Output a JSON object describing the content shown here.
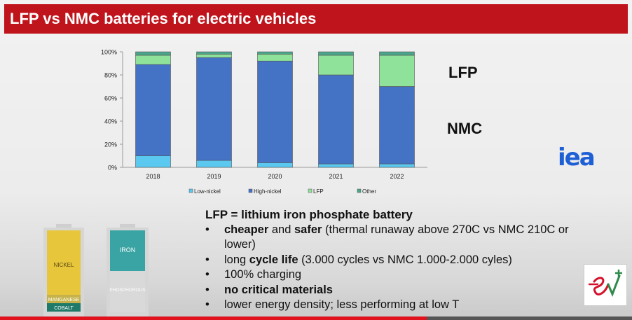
{
  "slide": {
    "title": "LFP vs NMC batteries for electric vehicles",
    "lfp_label": "LFP",
    "nmc_label": "NMC",
    "logo_text": "iea",
    "heading": "LFP = lithium iron phosphate battery",
    "bullets": [
      {
        "parts": [
          {
            "text": "cheaper",
            "bold": true
          },
          {
            "text": " and ",
            "bold": false
          },
          {
            "text": "safer",
            "bold": true
          },
          {
            "text": " (thermal runaway above 270C vs  NMC 210C or lower)",
            "bold": false
          }
        ]
      },
      {
        "parts": [
          {
            "text": "long ",
            "bold": false
          },
          {
            "text": "cycle life",
            "bold": true
          },
          {
            "text": " (3.000 cycles vs NMC 1.000-2.000 cyles)",
            "bold": false
          }
        ]
      },
      {
        "parts": [
          {
            "text": "100% charging",
            "bold": false
          }
        ]
      },
      {
        "parts": [
          {
            "text": "no critical materials",
            "bold": true
          }
        ]
      },
      {
        "parts": [
          {
            "text": "lower energy density; less performing at low T",
            "bold": false
          }
        ]
      }
    ],
    "battery_nmc": {
      "top": "NICKEL",
      "mid": "MANGANESE",
      "bottom": "COBALT"
    },
    "battery_lfp": {
      "top": "IRON",
      "bottom": "PHOSPHOROUS"
    },
    "video_progress": 0.675
  },
  "colors": {
    "title_bg": "#c0141c",
    "low_nickel": "#5bc8ef",
    "high_nickel": "#4472c4",
    "lfp": "#8ee29a",
    "other": "#4aa58a"
  },
  "chart_data": {
    "type": "bar",
    "stacked": true,
    "categories": [
      "2018",
      "2019",
      "2020",
      "2021",
      "2022"
    ],
    "series": [
      {
        "name": "Low-nickel",
        "values": [
          10,
          6,
          4,
          3,
          3
        ]
      },
      {
        "name": "High-nickel",
        "values": [
          79,
          89,
          88,
          77,
          67
        ]
      },
      {
        "name": "LFP",
        "values": [
          8,
          3,
          6,
          17,
          27
        ]
      },
      {
        "name": "Other",
        "values": [
          3,
          2,
          2,
          3,
          3
        ]
      }
    ],
    "ylim": [
      0,
      100
    ],
    "y_ticks": [
      "0%",
      "20%",
      "40%",
      "60%",
      "80%",
      "100%"
    ],
    "legend": "bottom",
    "grid": false
  }
}
